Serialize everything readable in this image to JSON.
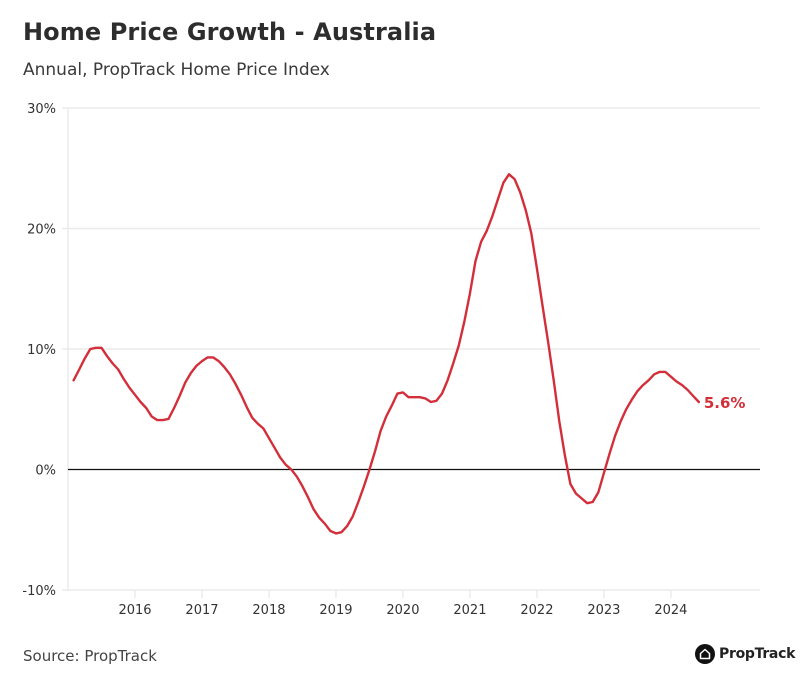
{
  "header": {
    "title": "Home Price Growth - Australia",
    "subtitle": "Annual, PropTrack Home Price Index"
  },
  "footer": {
    "source": "Source: PropTrack",
    "logo_text": "PropTrack",
    "logo_icon": "house-icon"
  },
  "colors": {
    "line": "#d32f3a",
    "zero_line": "#111111",
    "grid": "#ebebeb"
  },
  "chart_data": {
    "type": "line",
    "title": "Home Price Growth - Australia",
    "subtitle": "Annual, PropTrack Home Price Index",
    "xlabel": "",
    "ylabel": "",
    "ylim": [
      -10,
      30
    ],
    "xlim": [
      2015.0,
      2025.33
    ],
    "yticks": [
      -10,
      0,
      10,
      20,
      30
    ],
    "ytick_labels": [
      "-10%",
      "0%",
      "10%",
      "20%",
      "30%"
    ],
    "xticks": [
      2016,
      2017,
      2018,
      2019,
      2020,
      2021,
      2022,
      2023,
      2024
    ],
    "xtick_labels": [
      "2016",
      "2017",
      "2018",
      "2019",
      "2020",
      "2021",
      "2022",
      "2023",
      "2024"
    ],
    "grid": "horizontal",
    "legend": "none",
    "end_label": "5.6%",
    "series": [
      {
        "name": "Annual home price growth (%)",
        "start": "2015-02",
        "frequency": "monthly",
        "values": [
          7.4,
          8.3,
          9.2,
          10.0,
          10.1,
          10.1,
          9.4,
          8.8,
          8.3,
          7.5,
          6.8,
          6.2,
          5.6,
          5.1,
          4.4,
          4.1,
          4.1,
          4.2,
          5.1,
          6.1,
          7.2,
          8.0,
          8.6,
          9.0,
          9.3,
          9.3,
          9.0,
          8.5,
          7.9,
          7.1,
          6.2,
          5.2,
          4.3,
          3.8,
          3.4,
          2.6,
          1.8,
          1.0,
          0.4,
          0.0,
          -0.6,
          -1.4,
          -2.3,
          -3.3,
          -4.0,
          -4.5,
          -5.1,
          -5.3,
          -5.2,
          -4.7,
          -3.9,
          -2.7,
          -1.4,
          0.0,
          1.5,
          3.2,
          4.4,
          5.3,
          6.3,
          6.4,
          6.0,
          6.0,
          6.0,
          5.9,
          5.6,
          5.7,
          6.3,
          7.4,
          8.8,
          10.3,
          12.3,
          14.6,
          17.3,
          18.9,
          19.8,
          21.0,
          22.4,
          23.8,
          24.5,
          24.1,
          23.0,
          21.5,
          19.6,
          16.7,
          13.6,
          10.6,
          7.4,
          4.0,
          1.2,
          -1.2,
          -2.0,
          -2.4,
          -2.8,
          -2.7,
          -1.9,
          -0.3,
          1.3,
          2.8,
          4.0,
          5.0,
          5.8,
          6.5,
          7.0,
          7.4,
          7.9,
          8.1,
          8.1,
          7.7,
          7.3,
          7.0,
          6.6,
          6.1,
          5.6
        ]
      }
    ]
  }
}
